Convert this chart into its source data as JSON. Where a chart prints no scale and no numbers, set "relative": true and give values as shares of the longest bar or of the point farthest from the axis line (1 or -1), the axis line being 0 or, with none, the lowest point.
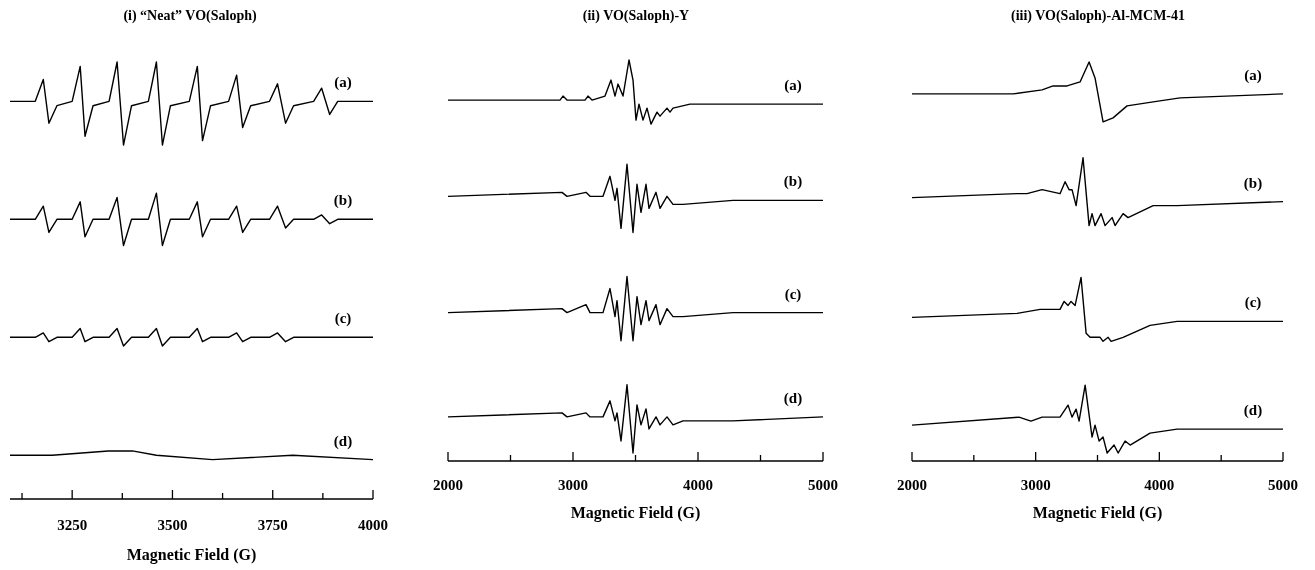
{
  "chart_data": [
    {
      "type": "line",
      "title": "(i)  “Neat” VO(Saloph)",
      "xlabel": "Magnetic Field (G)",
      "relative": true,
      "xlim": [
        3095,
        4000
      ],
      "xticks": [
        {
          "value": 3125,
          "label": null
        },
        3250,
        {
          "value": 3375,
          "label": null
        },
        3500,
        {
          "value": 3625,
          "label": null
        },
        3750,
        {
          "value": 3875,
          "label": null
        },
        4000
      ],
      "series": [
        {
          "name": "(a)",
          "color": "#000000",
          "x": [
            3095,
            3158,
            3178,
            3192,
            3212,
            3250,
            3270,
            3282,
            3302,
            3342,
            3362,
            3378,
            3398,
            3440,
            3460,
            3475,
            3495,
            3542,
            3562,
            3575,
            3595,
            3640,
            3660,
            3675,
            3695,
            3742,
            3762,
            3782,
            3802,
            3852,
            3872,
            3892,
            3912,
            4000
          ],
          "values": [
            0.91,
            0.91,
            0.96,
            0.86,
            0.9,
            0.91,
            0.99,
            0.83,
            0.9,
            0.91,
            1.0,
            0.81,
            0.9,
            0.91,
            1.0,
            0.81,
            0.9,
            0.91,
            0.99,
            0.82,
            0.9,
            0.91,
            0.97,
            0.85,
            0.9,
            0.91,
            0.95,
            0.86,
            0.9,
            0.91,
            0.94,
            0.88,
            0.91,
            0.91
          ]
        },
        {
          "name": "(b)",
          "color": "#000000",
          "x": [
            3095,
            3158,
            3178,
            3192,
            3212,
            3250,
            3270,
            3282,
            3302,
            3342,
            3362,
            3378,
            3398,
            3440,
            3460,
            3475,
            3495,
            3542,
            3562,
            3575,
            3595,
            3640,
            3660,
            3675,
            3695,
            3742,
            3762,
            3782,
            3802,
            3852,
            3872,
            3892,
            3912,
            4000
          ],
          "values": [
            0.64,
            0.64,
            0.67,
            0.61,
            0.64,
            0.64,
            0.68,
            0.6,
            0.64,
            0.64,
            0.69,
            0.58,
            0.64,
            0.64,
            0.7,
            0.58,
            0.64,
            0.64,
            0.68,
            0.6,
            0.64,
            0.64,
            0.67,
            0.61,
            0.64,
            0.64,
            0.67,
            0.62,
            0.64,
            0.64,
            0.65,
            0.63,
            0.64,
            0.64
          ]
        },
        {
          "name": "(c)",
          "color": "#000000",
          "x": [
            3095,
            3158,
            3178,
            3192,
            3212,
            3250,
            3270,
            3282,
            3302,
            3342,
            3362,
            3378,
            3398,
            3440,
            3460,
            3475,
            3495,
            3542,
            3562,
            3575,
            3595,
            3640,
            3660,
            3675,
            3695,
            3742,
            3762,
            3782,
            3802,
            3852,
            3872,
            3892,
            3912,
            4000
          ],
          "values": [
            0.37,
            0.37,
            0.38,
            0.36,
            0.37,
            0.37,
            0.39,
            0.36,
            0.37,
            0.37,
            0.39,
            0.35,
            0.37,
            0.37,
            0.39,
            0.35,
            0.37,
            0.37,
            0.39,
            0.36,
            0.37,
            0.37,
            0.38,
            0.36,
            0.37,
            0.37,
            0.38,
            0.36,
            0.37,
            0.37,
            0.37,
            0.37,
            0.37,
            0.37
          ]
        },
        {
          "name": "(d)",
          "color": "#000000",
          "x": [
            3095,
            3200,
            3340,
            3400,
            3460,
            3600,
            3800,
            4000
          ],
          "values": [
            0.1,
            0.1,
            0.11,
            0.11,
            0.1,
            0.09,
            0.1,
            0.09
          ]
        }
      ]
    },
    {
      "type": "line",
      "title": "(ii) VO(Saloph)-Y",
      "xlabel": "Magnetic Field (G)",
      "relative": true,
      "xlim": [
        2000,
        5000
      ],
      "xticks": [
        2000,
        {
          "value": 2500,
          "label": null
        },
        3000,
        {
          "value": 3500,
          "label": null
        },
        4000,
        {
          "value": 4500,
          "label": null
        },
        5000
      ],
      "series": [
        {
          "name": "(a)",
          "color": "#000000",
          "x": [
            2000,
            2896,
            2920,
            2952,
            3096,
            3120,
            3152,
            3256,
            3304,
            3336,
            3360,
            3400,
            3448,
            3480,
            3504,
            3528,
            3560,
            3592,
            3624,
            3672,
            3696,
            3752,
            3776,
            3800,
            3936,
            4280,
            5000
          ],
          "values": [
            0.9,
            0.9,
            0.91,
            0.9,
            0.9,
            0.91,
            0.9,
            0.91,
            0.95,
            0.91,
            0.94,
            0.91,
            1.0,
            0.95,
            0.85,
            0.89,
            0.85,
            0.88,
            0.84,
            0.87,
            0.86,
            0.88,
            0.87,
            0.88,
            0.89,
            0.89,
            0.89
          ]
        },
        {
          "name": "(b)",
          "color": "#000000",
          "x": [
            2000,
            2912,
            2952,
            3104,
            3136,
            3240,
            3296,
            3336,
            3352,
            3384,
            3432,
            3480,
            3512,
            3544,
            3584,
            3608,
            3664,
            3696,
            3752,
            3800,
            3880,
            4280,
            5000
          ],
          "values": [
            0.66,
            0.67,
            0.66,
            0.67,
            0.66,
            0.66,
            0.71,
            0.65,
            0.68,
            0.58,
            0.74,
            0.57,
            0.69,
            0.62,
            0.69,
            0.63,
            0.67,
            0.63,
            0.66,
            0.64,
            0.64,
            0.65,
            0.65
          ]
        },
        {
          "name": "(c)",
          "color": "#000000",
          "x": [
            2000,
            2912,
            2952,
            3104,
            3136,
            3240,
            3296,
            3336,
            3352,
            3384,
            3432,
            3480,
            3512,
            3544,
            3584,
            3608,
            3664,
            3696,
            3752,
            3800,
            3880,
            4280,
            5000
          ],
          "values": [
            0.37,
            0.38,
            0.37,
            0.39,
            0.37,
            0.37,
            0.43,
            0.36,
            0.4,
            0.3,
            0.46,
            0.3,
            0.41,
            0.34,
            0.4,
            0.35,
            0.39,
            0.34,
            0.38,
            0.36,
            0.36,
            0.37,
            0.37
          ]
        },
        {
          "name": "(d)",
          "color": "#000000",
          "x": [
            2000,
            2912,
            2952,
            3104,
            3136,
            3240,
            3296,
            3336,
            3352,
            3384,
            3432,
            3480,
            3512,
            3544,
            3584,
            3608,
            3664,
            3696,
            3752,
            3800,
            3880,
            4280,
            5000
          ],
          "values": [
            0.11,
            0.12,
            0.11,
            0.12,
            0.11,
            0.11,
            0.15,
            0.1,
            0.12,
            0.05,
            0.19,
            0.02,
            0.14,
            0.09,
            0.13,
            0.08,
            0.11,
            0.09,
            0.11,
            0.09,
            0.1,
            0.1,
            0.11
          ]
        }
      ]
    },
    {
      "type": "line",
      "title": "(iii) VO(Saloph)-Al-MCM-41",
      "xlabel": "Magnetic Field (G)",
      "relative": true,
      "xlim": [
        2000,
        5000
      ],
      "xticks": [
        2000,
        {
          "value": 2500,
          "label": null
        },
        3000,
        {
          "value": 3500,
          "label": null
        },
        4000,
        {
          "value": 4500,
          "label": null
        },
        5000
      ],
      "series": [
        {
          "name": "(a)",
          "color": "#000000",
          "x": [
            2000,
            2817,
            3052,
            3141,
            3254,
            3359,
            3432,
            3480,
            3545,
            3626,
            3739,
            3950,
            4168,
            5000
          ],
          "values": [
            0.92,
            0.92,
            0.93,
            0.94,
            0.94,
            0.95,
            1.0,
            0.96,
            0.85,
            0.86,
            0.89,
            0.9,
            0.91,
            0.92
          ]
        },
        {
          "name": "(b)",
          "color": "#000000",
          "x": [
            2000,
            2849,
            2930,
            3052,
            3197,
            3238,
            3270,
            3294,
            3327,
            3383,
            3432,
            3456,
            3480,
            3529,
            3561,
            3618,
            3642,
            3707,
            3747,
            3950,
            4144,
            5000
          ],
          "values": [
            0.66,
            0.67,
            0.67,
            0.68,
            0.67,
            0.7,
            0.68,
            0.68,
            0.64,
            0.76,
            0.59,
            0.62,
            0.59,
            0.62,
            0.59,
            0.61,
            0.59,
            0.62,
            0.61,
            0.64,
            0.64,
            0.65
          ]
        },
        {
          "name": "(c)",
          "color": "#000000",
          "x": [
            2000,
            2850,
            3036,
            3197,
            3230,
            3262,
            3286,
            3319,
            3367,
            3408,
            3440,
            3480,
            3521,
            3545,
            3586,
            3610,
            3707,
            3925,
            4144,
            5000
          ],
          "values": [
            0.36,
            0.37,
            0.38,
            0.38,
            0.4,
            0.39,
            0.4,
            0.39,
            0.46,
            0.32,
            0.31,
            0.31,
            0.31,
            0.3,
            0.31,
            0.3,
            0.31,
            0.34,
            0.35,
            0.35
          ]
        },
        {
          "name": "(d)",
          "color": "#000000",
          "x": [
            2000,
            2865,
            2962,
            3052,
            3197,
            3262,
            3294,
            3327,
            3351,
            3400,
            3456,
            3480,
            3513,
            3545,
            3578,
            3634,
            3667,
            3723,
            3764,
            3925,
            4144,
            5000
          ],
          "values": [
            0.09,
            0.11,
            0.1,
            0.11,
            0.11,
            0.14,
            0.11,
            0.13,
            0.1,
            0.19,
            0.06,
            0.09,
            0.05,
            0.06,
            0.02,
            0.04,
            0.02,
            0.05,
            0.04,
            0.07,
            0.08,
            0.08
          ]
        }
      ]
    }
  ]
}
